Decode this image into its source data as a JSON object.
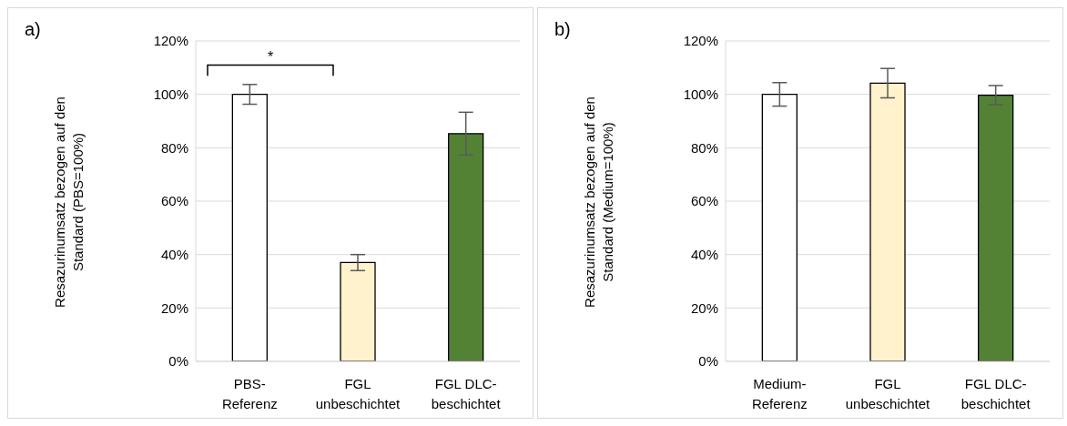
{
  "chart_data": [
    {
      "type": "bar",
      "annotations": [
        "a)",
        "*"
      ],
      "ylabel": "Resazurinumsatz bezogen auf den Standard (PBS=100%)",
      "categories": [
        "PBS-Referenz",
        "FGL unbeschichtet",
        "FGL DLC-beschichtet"
      ],
      "values": [
        100,
        37,
        85.3
      ],
      "colors": [
        "#ffffff",
        "#fff2cc",
        "#548235"
      ],
      "errors": [
        3.7,
        3,
        8
      ],
      "ylim": [
        0,
        120
      ],
      "yticks": [
        {
          "value": 0,
          "label": "0%"
        },
        {
          "value": 20,
          "label": "20%"
        },
        {
          "value": 40,
          "label": "40%"
        },
        {
          "value": 60,
          "label": "60%"
        },
        {
          "value": 80,
          "label": "80%"
        },
        {
          "value": 100,
          "label": "100%"
        },
        {
          "value": 120,
          "label": "120%"
        }
      ],
      "grid": "y"
    },
    {
      "type": "bar",
      "annotations": [
        "b)"
      ],
      "ylabel": "Resazurinumsatz bezogen auf den Standard (Medium=100%)",
      "categories": [
        "Medium-Referenz",
        "FGL unbeschichtet",
        "FGL DLC-beschichtet"
      ],
      "values": [
        100,
        104.2,
        99.7
      ],
      "colors": [
        "#ffffff",
        "#fff2cc",
        "#548235"
      ],
      "errors": [
        4.4,
        5.5,
        3.6
      ],
      "ylim": [
        0,
        120
      ],
      "yticks": [
        {
          "value": 0,
          "label": "0%"
        },
        {
          "value": 20,
          "label": "20%"
        },
        {
          "value": 40,
          "label": "40%"
        },
        {
          "value": 60,
          "label": "60%"
        },
        {
          "value": 80,
          "label": "80%"
        },
        {
          "value": 100,
          "label": "100%"
        },
        {
          "value": 120,
          "label": "120%"
        }
      ],
      "grid": "y"
    }
  ]
}
